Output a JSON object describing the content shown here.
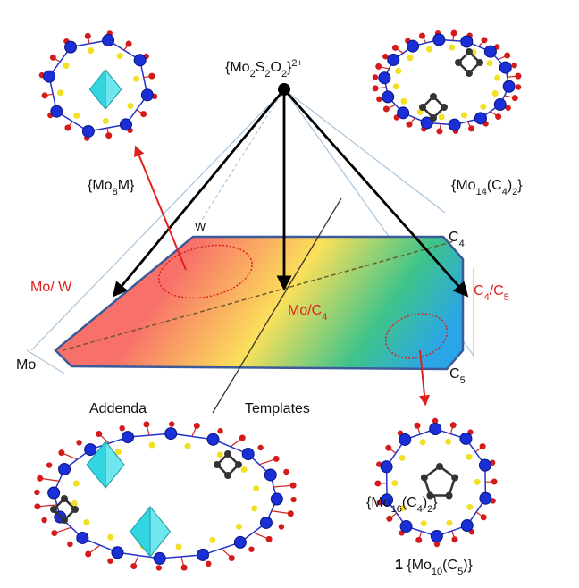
{
  "labels": {
    "apex": [
      {
        "t": "{Mo"
      },
      {
        "sub": "2"
      },
      {
        "t": "S"
      },
      {
        "sub": "2"
      },
      {
        "t": "O"
      },
      {
        "sub": "2"
      },
      {
        "t": "}"
      },
      {
        "sup": "2+"
      }
    ],
    "mo8m": [
      {
        "t": "{Mo"
      },
      {
        "sub": "8"
      },
      {
        "t": "M}"
      }
    ],
    "mo14": [
      {
        "t": "{Mo"
      },
      {
        "sub": "14"
      },
      {
        "t": "(C"
      },
      {
        "sub": "4"
      },
      {
        "t": ")"
      },
      {
        "sub": "2"
      },
      {
        "t": "}"
      }
    ],
    "w": [
      {
        "t": "W"
      }
    ],
    "c4": [
      {
        "t": "C"
      },
      {
        "sub": "4"
      }
    ],
    "mo_w": [
      {
        "t": "Mo/ W"
      }
    ],
    "mo_c4": [
      {
        "t": "Mo/C"
      },
      {
        "sub": "4"
      }
    ],
    "c4_c5": [
      {
        "t": "C"
      },
      {
        "sub": "4"
      },
      {
        "t": "/C"
      },
      {
        "sub": "5"
      }
    ],
    "mo": [
      {
        "t": "Mo"
      }
    ],
    "c5": [
      {
        "t": "C"
      },
      {
        "sub": "5"
      }
    ],
    "addenda": [
      {
        "t": "Addenda"
      }
    ],
    "templates": [
      {
        "t": "Templates"
      }
    ],
    "mo16": [
      {
        "t": "{Mo"
      },
      {
        "sub": "16"
      },
      {
        "t": "(C"
      },
      {
        "sub": "4"
      },
      {
        "t": ")"
      },
      {
        "sub": "2"
      },
      {
        "t": "}"
      }
    ],
    "mo10": [
      {
        "b": "1"
      },
      {
        "t": " {Mo"
      },
      {
        "sub": "10"
      },
      {
        "t": "(C"
      },
      {
        "sub": "5"
      },
      {
        "t": ")}"
      }
    ]
  }
}
